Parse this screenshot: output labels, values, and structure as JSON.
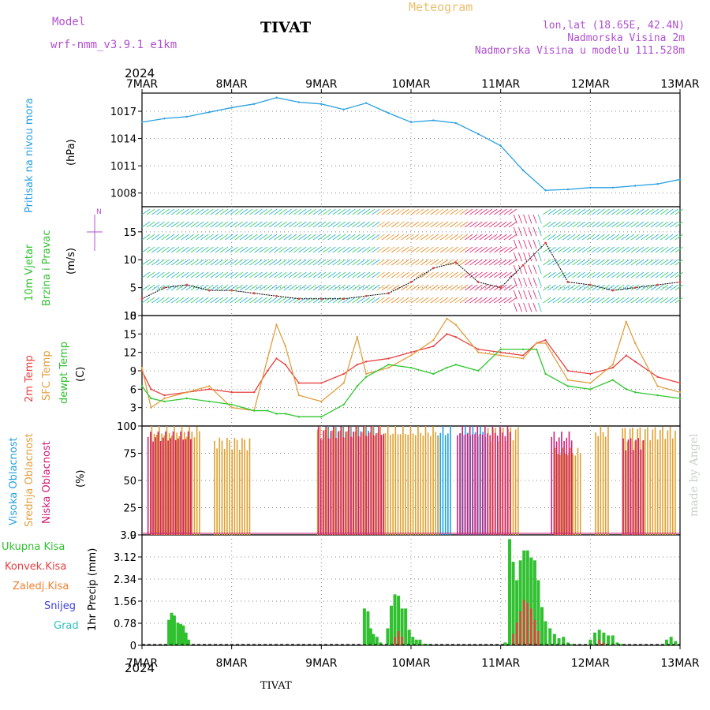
{
  "header": {
    "model_label": "Model",
    "model_name": "wrf-nmm_v3.9.1  e1km",
    "station": "TIVAT",
    "title": "Meteogram",
    "lonlat": "lon,lat (18.65E, 42.4N)",
    "elev": "Nadmorska Visina 2m",
    "elev_model": "Nadmorska Visina u modelu 111.528m",
    "year_top": "2024",
    "year_bottom": "2024",
    "footer_station": "TIVAT",
    "credit": "made by Angel"
  },
  "colors": {
    "pressure": "#2aa0e0",
    "t2m": "#e84040",
    "sfc": "#e0a040",
    "dewpt": "#30c830",
    "high_cloud": "#20a0e0",
    "mid_cloud": "#e0a030",
    "low_cloud": "#d0207a",
    "total_precip": "#30c030",
    "conv_precip": "#e84040",
    "freezing": "#f08030",
    "snow": "#4040e0",
    "hail": "#30c0c0",
    "purple": "#b050d0"
  },
  "x_ticks": [
    "7MAR",
    "8MAR",
    "9MAR",
    "10MAR",
    "11MAR",
    "12MAR",
    "13MAR"
  ],
  "chart_data": [
    {
      "type": "line",
      "panel": "pressure",
      "ylabel_lines": [
        "Pritisak na nivou mora",
        "(hPa)"
      ],
      "ylim": [
        1006.5,
        1019
      ],
      "yticks": [
        1008,
        1011,
        1014,
        1017
      ],
      "x_days": [
        0,
        0.25,
        0.5,
        0.75,
        1.0,
        1.25,
        1.5,
        1.75,
        2.0,
        2.25,
        2.5,
        2.75,
        3.0,
        3.25,
        3.5,
        3.75,
        4.0,
        4.25,
        4.5,
        4.75,
        5.0,
        5.25,
        5.5,
        5.75,
        6.0
      ],
      "series": [
        {
          "values": [
            1015.8,
            1016.2,
            1016.4,
            1016.9,
            1017.4,
            1017.8,
            1018.5,
            1018.0,
            1017.8,
            1017.2,
            1017.9,
            1016.8,
            1015.8,
            1016.0,
            1015.7,
            1014.5,
            1013.2,
            1010.5,
            1008.3,
            1008.4,
            1008.6,
            1008.6,
            1008.8,
            1009.0,
            1009.5
          ]
        }
      ]
    },
    {
      "type": "line",
      "panel": "wind",
      "ylabel_lines": [
        "10m Vjetar",
        "Brzina i Pravac",
        "(m/s)"
      ],
      "direction_key": "N",
      "ylim": [
        0,
        19.5
      ],
      "yticks": [
        0,
        5,
        10,
        15
      ],
      "x_days": [
        0,
        0.25,
        0.5,
        0.75,
        1.0,
        1.25,
        1.5,
        1.75,
        2.0,
        2.25,
        2.5,
        2.75,
        3.0,
        3.25,
        3.5,
        3.75,
        4.0,
        4.25,
        4.5,
        4.75,
        5.0,
        5.25,
        5.5,
        5.75,
        6.0
      ],
      "series": [
        {
          "values": [
            3.0,
            5.0,
            5.5,
            4.5,
            4.5,
            4.0,
            3.5,
            3.0,
            3.0,
            3.0,
            3.5,
            4.0,
            6.0,
            8.5,
            9.5,
            6.0,
            5.0,
            9.0,
            13.0,
            6.0,
            5.5,
            4.5,
            5.0,
            5.5,
            6.0
          ]
        }
      ]
    },
    {
      "type": "line",
      "panel": "temperature",
      "ylabel_lines": [
        "2m Temp",
        "SFC Temp",
        "dewpt Temp",
        "(C)"
      ],
      "ylim": [
        0,
        18
      ],
      "yticks": [
        0,
        3,
        6,
        9,
        12,
        15,
        18
      ],
      "x_days": [
        0,
        0.1,
        0.25,
        0.5,
        0.75,
        1.0,
        1.25,
        1.4,
        1.5,
        1.6,
        1.75,
        2.0,
        2.25,
        2.4,
        2.5,
        2.75,
        3.0,
        3.25,
        3.4,
        3.5,
        3.75,
        4.0,
        4.25,
        4.4,
        4.5,
        4.75,
        5.0,
        5.25,
        5.4,
        5.5,
        5.75,
        6.0
      ],
      "series": [
        {
          "name": "2m Temp",
          "values": [
            9.0,
            6.0,
            5.0,
            5.5,
            6.0,
            5.5,
            5.5,
            9.0,
            11.0,
            10.0,
            7.0,
            7.0,
            8.5,
            10.0,
            10.5,
            11.0,
            12.0,
            13.0,
            15.0,
            14.5,
            12.5,
            12.0,
            11.5,
            13.5,
            14.0,
            9.0,
            8.5,
            9.5,
            11.5,
            10.5,
            8.0,
            7.0
          ]
        },
        {
          "name": "SFC Temp",
          "values": [
            9.5,
            3.0,
            4.5,
            5.5,
            6.5,
            3.0,
            2.5,
            11.0,
            16.5,
            13.0,
            5.0,
            4.0,
            7.0,
            14.5,
            8.5,
            9.5,
            11.5,
            14.0,
            17.5,
            16.5,
            12.0,
            11.5,
            11.0,
            13.5,
            13.5,
            7.5,
            7.0,
            10.0,
            17.0,
            13.5,
            6.5,
            5.5
          ]
        },
        {
          "name": "dewpt Temp",
          "values": [
            6.5,
            4.5,
            4.0,
            4.5,
            4.0,
            3.5,
            2.5,
            2.5,
            2.0,
            2.0,
            1.5,
            1.5,
            3.5,
            6.5,
            8.0,
            10.0,
            9.5,
            8.5,
            9.5,
            10.0,
            9.0,
            12.5,
            12.5,
            12.5,
            8.5,
            6.5,
            6.0,
            7.5,
            6.0,
            5.5,
            5.0,
            4.5
          ]
        }
      ]
    },
    {
      "type": "bar",
      "panel": "cloud",
      "ylabel_lines": [
        "Visoka Oblacnost",
        "Srednja Oblacnost",
        "Niska Oblacnost",
        "(%)"
      ],
      "ylim": [
        0,
        100
      ],
      "yticks": [
        0,
        25,
        50,
        75,
        100
      ],
      "series": [
        {
          "name": "Visoka Oblacnost",
          "segments": [
            [
              2.05,
              2.6,
              100
            ],
            [
              3.3,
              3.45,
              100
            ],
            [
              3.55,
              3.85,
              100
            ]
          ]
        },
        {
          "name": "Srednja Oblacnost",
          "segments": [
            [
              0.1,
              0.65,
              100
            ],
            [
              0.8,
              1.2,
              90
            ],
            [
              1.95,
              3.3,
              100
            ],
            [
              3.85,
              4.2,
              100
            ],
            [
              4.6,
              4.9,
              80
            ],
            [
              5.05,
              5.2,
              100
            ],
            [
              5.35,
              5.95,
              100
            ]
          ]
        },
        {
          "name": "Niska Oblacnost",
          "segments": [
            [
              0.05,
              0.55,
              95
            ],
            [
              1.95,
              2.7,
              100
            ],
            [
              3.5,
              4.1,
              100
            ],
            [
              4.55,
              4.8,
              95
            ],
            [
              5.35,
              5.6,
              90
            ]
          ]
        }
      ]
    },
    {
      "type": "bar",
      "panel": "precip",
      "ylabel_lines": [
        "Ukupna Kisa",
        "Konvek.Kisa",
        "Zaledj.Kisa",
        "Snijeg",
        "Grad",
        "1hr Precip (mm)"
      ],
      "ylim": [
        0,
        3.9
      ],
      "yticks": [
        0,
        0.78,
        1.56,
        2.34,
        3.12,
        3.9
      ],
      "series": [
        {
          "name": "Ukupna Kisa",
          "x": [
            0.3,
            0.33,
            0.36,
            0.4,
            0.43,
            0.46,
            0.49,
            0.52,
            2.48,
            2.52,
            2.55,
            2.58,
            2.62,
            2.66,
            2.74,
            2.78,
            2.82,
            2.86,
            2.9,
            2.94,
            2.98,
            3.02,
            3.06,
            3.1,
            3.14,
            3.18,
            4.05,
            4.1,
            4.14,
            4.18,
            4.22,
            4.26,
            4.3,
            4.34,
            4.38,
            4.42,
            4.46,
            4.5,
            4.55,
            4.6,
            4.65,
            4.7,
            4.75,
            4.8,
            5.0,
            5.05,
            5.1,
            5.15,
            5.2,
            5.25,
            5.3,
            5.35,
            5.85,
            5.9,
            5.95
          ],
          "values": [
            0.9,
            1.15,
            1.05,
            0.8,
            0.75,
            0.7,
            0.45,
            0.2,
            1.3,
            1.2,
            0.6,
            0.4,
            0.3,
            0.1,
            0.6,
            1.4,
            1.8,
            1.75,
            1.3,
            1.3,
            0.55,
            0.3,
            0.2,
            0.2,
            0.05,
            0.05,
            0.1,
            3.75,
            2.95,
            2.3,
            3.0,
            3.35,
            3.35,
            3.1,
            3.0,
            2.3,
            1.35,
            0.85,
            0.6,
            0.4,
            0.25,
            0.3,
            0.1,
            0.05,
            0.2,
            0.45,
            0.55,
            0.45,
            0.35,
            0.35,
            0.1,
            0.05,
            0.2,
            0.3,
            0.15
          ]
        },
        {
          "name": "Konvek.Kisa",
          "x": [
            2.82,
            2.86,
            2.9,
            4.14,
            4.18,
            4.22,
            4.26,
            4.3,
            4.34,
            4.38,
            4.42,
            5.1,
            5.15
          ],
          "values": [
            0.3,
            0.5,
            0.3,
            0.4,
            0.8,
            1.2,
            1.6,
            1.5,
            1.3,
            0.9,
            0.5,
            0.2,
            0.1
          ]
        }
      ]
    }
  ]
}
